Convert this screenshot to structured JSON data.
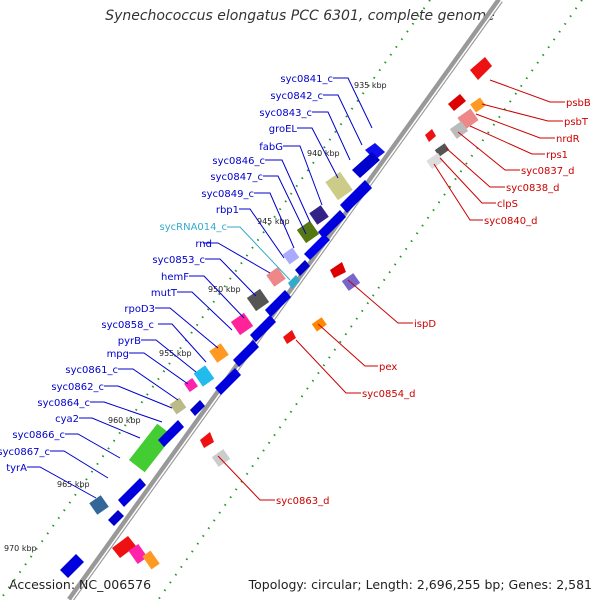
{
  "title": "Synechococcus elongatus PCC 6301, complete genome",
  "footer": {
    "accession": "Accession: NC_006576",
    "topology": "Topology: circular; Length: 2,696,255 bp; Genes: 2,581"
  },
  "colors": {
    "forward_label": "#0000cc",
    "reverse_label": "#cc0000",
    "rna_label": "#33aacc",
    "backbone": "#888888",
    "tick_dots": "#229922"
  },
  "ticks": [
    "935 kbp",
    "940 kbp",
    "945 kbp",
    "950 kbp",
    "955 kbp",
    "960 kbp",
    "965 kbp",
    "970 kbp"
  ],
  "forward_labels": [
    "syc0841_c",
    "syc0842_c",
    "syc0843_c",
    "groEL",
    "fabG",
    "syc0846_c",
    "syc0847_c",
    "syc0849_c",
    "rbp1",
    "sycRNA014_c",
    "rnd",
    "syc0853_c",
    "hemF",
    "mutT",
    "rpoD3",
    "syc0858_c",
    "pyrB",
    "mpg",
    "syc0861_c",
    "syc0862_c",
    "syc0864_c",
    "cya2",
    "syc0866_c",
    "syc0867_c",
    "tyrA"
  ],
  "reverse_labels": [
    "psbB",
    "psbT",
    "nrdR",
    "rps1",
    "syc0837_d",
    "syc0838_d",
    "clpS",
    "syc0840_d",
    "ispD",
    "pex",
    "syc0854_d",
    "syc0863_d"
  ]
}
